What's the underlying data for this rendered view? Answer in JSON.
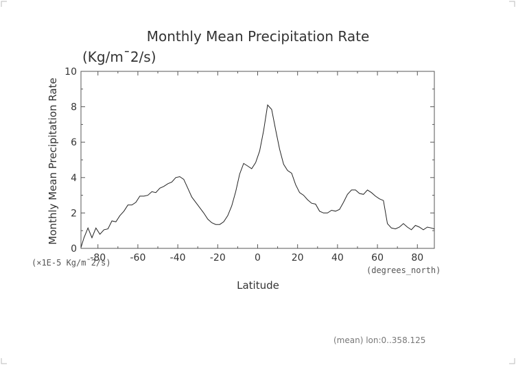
{
  "chart_data": {
    "type": "line",
    "title": "Monthly Mean Precipitation Rate",
    "subtitle": "(Kg/m¯2/s)",
    "ylabel": "Monthly Mean Precipitation Rate",
    "xlabel": "Latitude",
    "x_units_label": "(degrees_north)",
    "y_scale_label": "(×1E-5 Kg/m¯2/s)",
    "footer": "(mean) lon:0..358.125",
    "xlim": [
      -88.5,
      88.5
    ],
    "ylim": [
      0,
      10
    ],
    "xticks": [
      -80,
      -60,
      -40,
      -20,
      0,
      20,
      40,
      60,
      80
    ],
    "yticks": [
      0,
      2,
      4,
      6,
      8,
      10
    ],
    "grid": false,
    "x": [
      -88.5,
      -87,
      -85,
      -83,
      -81,
      -79,
      -77,
      -75,
      -73,
      -71,
      -69,
      -67,
      -65,
      -63,
      -61,
      -59,
      -57,
      -55,
      -53,
      -51,
      -49,
      -47,
      -45,
      -43,
      -41,
      -39,
      -37,
      -35,
      -33,
      -31,
      -29,
      -27,
      -25,
      -23,
      -21,
      -19,
      -17,
      -15,
      -13,
      -11,
      -9,
      -7,
      -5,
      -3,
      -1,
      1,
      3,
      5,
      7,
      9,
      11,
      13,
      15,
      17,
      19,
      21,
      23,
      25,
      27,
      29,
      31,
      33,
      35,
      37,
      39,
      41,
      43,
      45,
      47,
      49,
      51,
      53,
      55,
      57,
      59,
      61,
      63,
      65,
      67,
      69,
      71,
      73,
      75,
      77,
      79,
      81,
      83,
      85,
      87,
      88.5
    ],
    "y": [
      0.05,
      0.6,
      1.15,
      0.6,
      1.15,
      0.8,
      1.05,
      1.1,
      1.55,
      1.5,
      1.85,
      2.1,
      2.45,
      2.45,
      2.6,
      2.95,
      2.95,
      3.0,
      3.2,
      3.15,
      3.4,
      3.5,
      3.65,
      3.75,
      4.0,
      4.05,
      3.9,
      3.4,
      2.9,
      2.6,
      2.3,
      2.0,
      1.65,
      1.45,
      1.35,
      1.35,
      1.5,
      1.85,
      2.4,
      3.2,
      4.2,
      4.8,
      4.65,
      4.5,
      4.85,
      5.5,
      6.65,
      8.1,
      7.85,
      6.7,
      5.6,
      4.75,
      4.4,
      4.25,
      3.6,
      3.15,
      3.0,
      2.75,
      2.55,
      2.5,
      2.1,
      2.0,
      2.0,
      2.15,
      2.1,
      2.2,
      2.6,
      3.05,
      3.3,
      3.3,
      3.1,
      3.05,
      3.3,
      3.15,
      2.95,
      2.8,
      2.7,
      1.4,
      1.15,
      1.1,
      1.2,
      1.4,
      1.2,
      1.05,
      1.3,
      1.2,
      1.05,
      1.2,
      1.15,
      1.1
    ]
  }
}
